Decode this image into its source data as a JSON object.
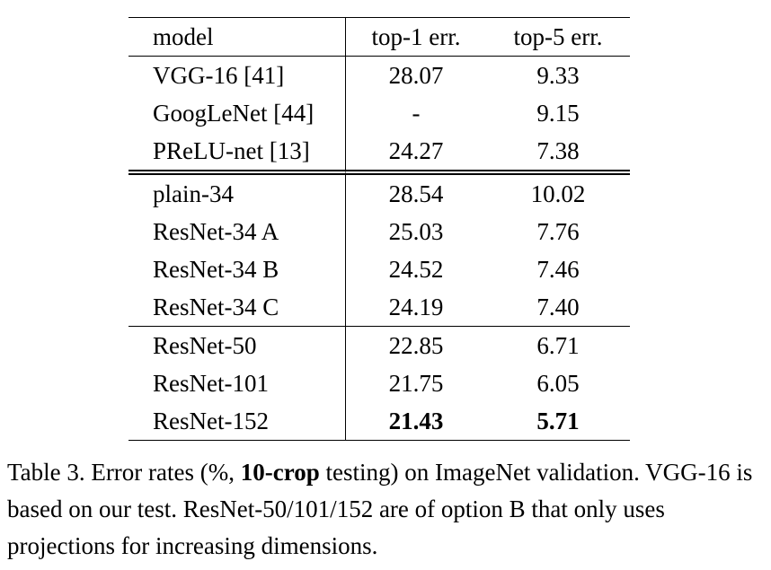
{
  "table": {
    "header": [
      "model",
      "top-1 err.",
      "top-5 err."
    ],
    "groups": [
      {
        "separator": "double",
        "rows": [
          [
            "VGG-16 [41]",
            "28.07",
            "9.33"
          ],
          [
            "GoogLeNet [44]",
            "-",
            "9.15"
          ],
          [
            "PReLU-net [13]",
            "24.27",
            "7.38"
          ]
        ]
      },
      {
        "separator": "single",
        "rows": [
          [
            "plain-34",
            "28.54",
            "10.02"
          ],
          [
            "ResNet-34 A",
            "25.03",
            "7.76"
          ],
          [
            "ResNet-34 B",
            "24.52",
            "7.46"
          ],
          [
            "ResNet-34 C",
            "24.19",
            "7.40"
          ]
        ]
      },
      {
        "separator": "none",
        "rows": [
          [
            "ResNet-50",
            "22.85",
            "6.71"
          ],
          [
            "ResNet-101",
            "21.75",
            "6.05"
          ],
          [
            "ResNet-152",
            {
              "text": "21.43",
              "bold": true
            },
            {
              "text": "5.71",
              "bold": true
            }
          ]
        ]
      }
    ]
  },
  "caption": [
    "Table 3. Error rates (%, ",
    {
      "text": "10-crop",
      "bold": true
    },
    " testing) on ImageNet validation. VGG-16 is based on our test. ResNet-50/101/152 are of option B that only uses projections for increasing dimensions."
  ]
}
